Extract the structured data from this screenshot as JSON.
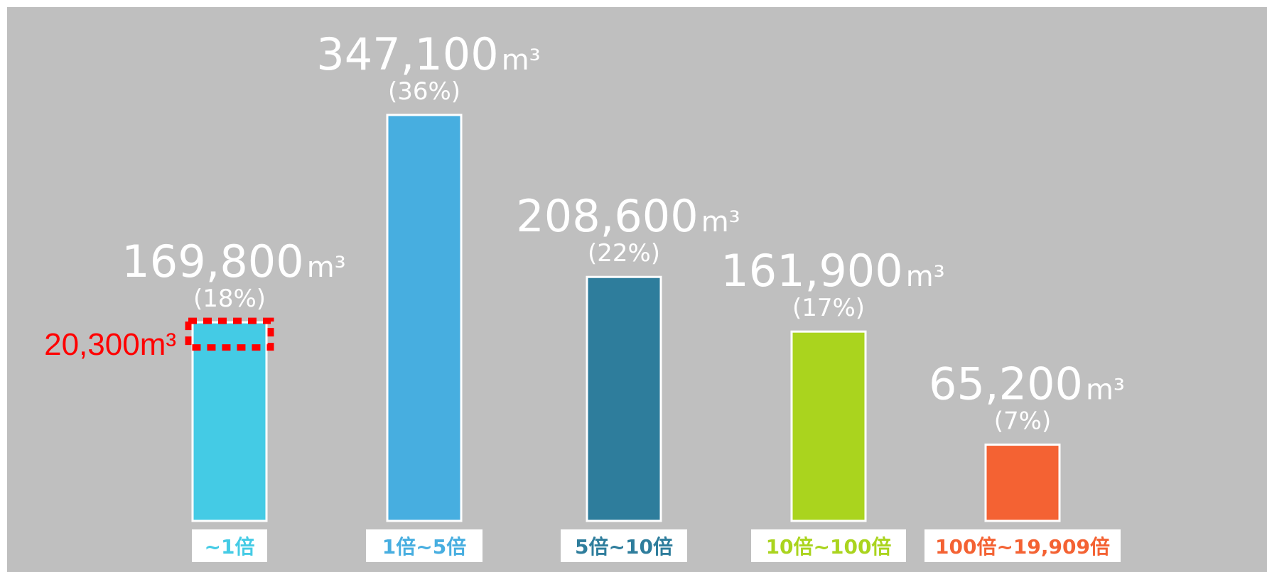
{
  "chart_data": {
    "type": "bar",
    "unit": "m³",
    "ylim": [
      0,
      400000
    ],
    "categories": [
      "~1倍",
      "1倍~5倍",
      "5倍~10倍",
      "10倍~100倍",
      "100倍~19,909倍"
    ],
    "values": [
      169800,
      347100,
      208600,
      161900,
      65200
    ],
    "value_labels": [
      "169,800",
      "347,100",
      "208,600",
      "161,900",
      "65,200"
    ],
    "percent_labels": [
      "(18%)",
      "(36%)",
      "(22%)",
      "(17%)",
      "(7%)"
    ],
    "colors": [
      "#44cbe5",
      "#47aee0",
      "#2e7d9c",
      "#aad41e",
      "#f46233"
    ],
    "annotation": {
      "bar_index": 0,
      "value": 20300,
      "label": "20,300",
      "color": "#ff0000"
    }
  }
}
